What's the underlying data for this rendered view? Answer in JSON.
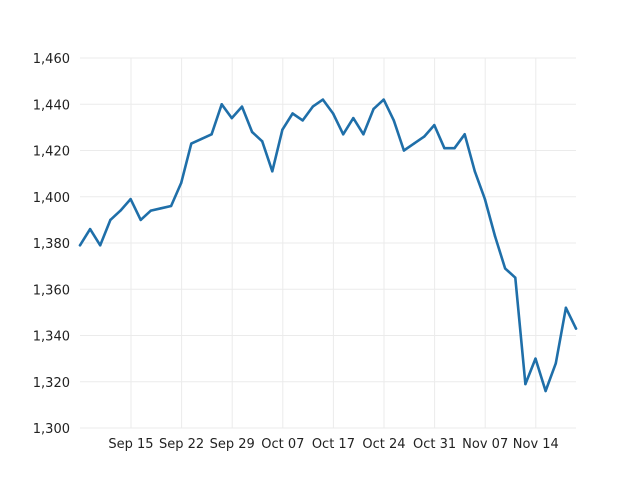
{
  "chart_data": {
    "type": "line",
    "title": "",
    "xlabel": "",
    "ylabel": "",
    "ylim": [
      1300,
      1460
    ],
    "y_ticks": [
      1300,
      1320,
      1340,
      1360,
      1380,
      1400,
      1420,
      1440,
      1460
    ],
    "y_tick_labels": [
      "1,300",
      "1,320",
      "1,340",
      "1,360",
      "1,380",
      "1,400",
      "1,420",
      "1,440",
      "1,460"
    ],
    "x_tick_labels": [
      "Sep 15",
      "Sep 22",
      "Sep 29",
      "Oct 07",
      "Oct 17",
      "Oct 24",
      "Oct 31",
      "Nov 07",
      "Nov 14"
    ],
    "grid": true,
    "color": "#1f6fa9",
    "series": [
      {
        "values": [
          1379,
          1386,
          1379,
          1390,
          1394,
          1399,
          1390,
          1394,
          1395,
          1396,
          1406,
          1423,
          1425,
          1427,
          1440,
          1434,
          1439,
          1428,
          1424,
          1411,
          1429,
          1436,
          1433,
          1439,
          1442,
          1436,
          1427,
          1434,
          1427,
          1438,
          1442,
          1433,
          1420,
          1423,
          1426,
          1431,
          1421,
          1421,
          1427,
          1411,
          1399,
          1383,
          1369,
          1365,
          1319,
          1330,
          1316,
          1328,
          1352,
          1343
        ]
      }
    ]
  }
}
